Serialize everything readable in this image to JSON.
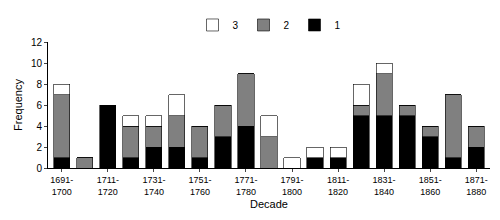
{
  "chart_data": {
    "type": "bar",
    "stacked": true,
    "x_label": "Decade",
    "y_label": "Frequency",
    "categories": [
      "1691-1700",
      null,
      "1711-1720",
      null,
      "1731-1740",
      null,
      "1751-1760",
      null,
      "1771-1780",
      null,
      "1791-1800",
      null,
      "1811-1820",
      null,
      "1831-1840",
      null,
      "1851-1860",
      null,
      "1871-1880"
    ],
    "series": [
      {
        "name": "1",
        "color": "#000000",
        "values": [
          1,
          0,
          6,
          1,
          2,
          2,
          1,
          3,
          4,
          0,
          0,
          1,
          1,
          5,
          5,
          5,
          3,
          1,
          2
        ]
      },
      {
        "name": "2",
        "color": "#808080",
        "values": [
          6,
          1,
          0,
          3,
          2,
          3,
          3,
          3,
          5,
          3,
          0,
          0,
          0,
          1,
          4,
          1,
          1,
          6,
          2
        ]
      },
      {
        "name": "3",
        "color": "#ffffff",
        "values": [
          1,
          0,
          0,
          1,
          1,
          2,
          0,
          0,
          0,
          2,
          1,
          1,
          1,
          2,
          1,
          0,
          0,
          0,
          0
        ]
      }
    ],
    "ylim": [
      0,
      12
    ],
    "yticks": [
      0,
      2,
      4,
      6,
      8,
      10,
      12
    ],
    "legend": "top",
    "grid": false
  }
}
